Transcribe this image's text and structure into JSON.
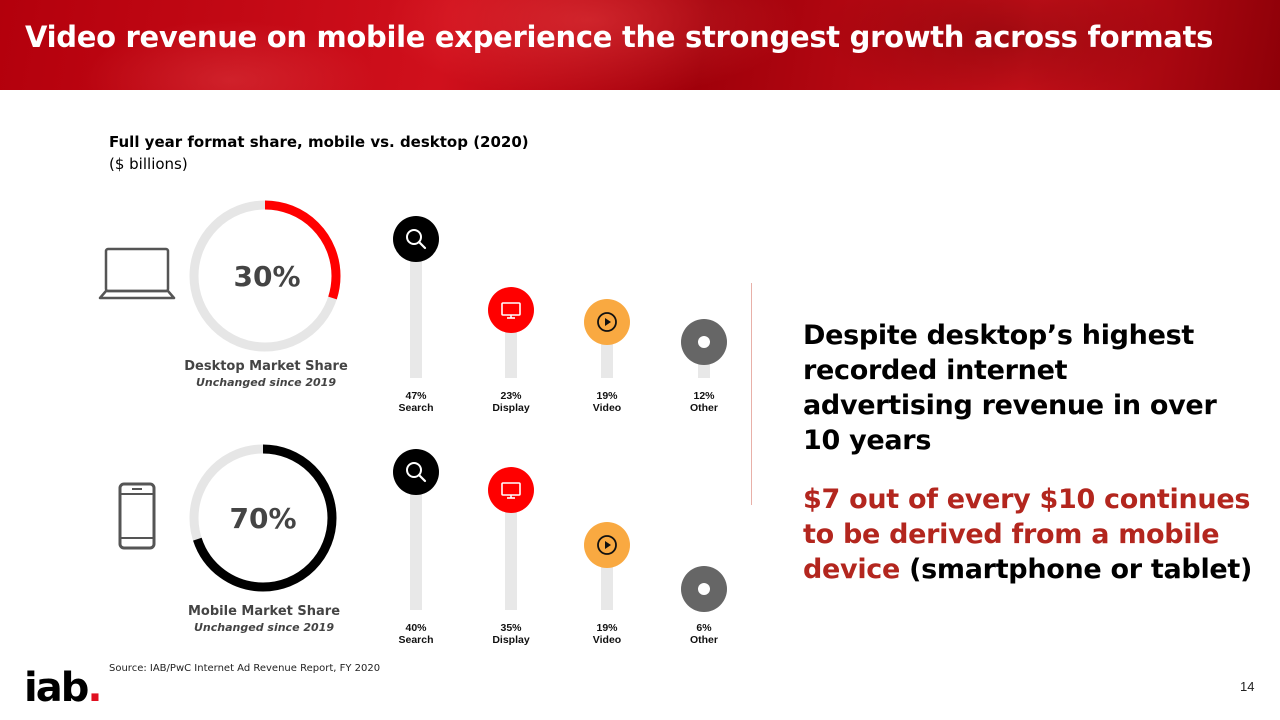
{
  "header": {
    "title": "Video revenue on mobile experience the strongest growth across formats"
  },
  "chart_heading": "Full year format share, mobile vs. desktop (2020)",
  "chart_subheading": "($ billions)",
  "chart_data": [
    {
      "type": "pie",
      "categories": [
        "Desktop Market Share",
        "Remainder"
      ],
      "values": [
        30,
        70
      ],
      "center_label": "30%",
      "label": "Desktop Market Share",
      "note": "Unchanged since 2019",
      "colors": {
        "fill": "#ff0000",
        "track": "#e6e6e6"
      }
    },
    {
      "type": "pie",
      "categories": [
        "Mobile Market Share",
        "Remainder"
      ],
      "values": [
        70,
        30
      ],
      "center_label": "70%",
      "label": "Mobile Market Share",
      "note": "Unchanged since 2019",
      "colors": {
        "fill": "#000000",
        "track": "#e6e6e6"
      }
    },
    {
      "type": "bar",
      "series_label": "Desktop",
      "categories": [
        "Search",
        "Display",
        "Video",
        "Other"
      ],
      "values": [
        47,
        23,
        19,
        12
      ],
      "value_labels": [
        "47%",
        "23%",
        "19%",
        "12%"
      ],
      "ylim": [
        0,
        50
      ],
      "icons": [
        "search-icon",
        "display-icon",
        "video-icon",
        "other-icon"
      ],
      "colors": [
        "#000000",
        "#ff0000",
        "#f9a941",
        "#666666"
      ]
    },
    {
      "type": "bar",
      "series_label": "Mobile",
      "categories": [
        "Search",
        "Display",
        "Video",
        "Other"
      ],
      "values": [
        40,
        35,
        19,
        6
      ],
      "value_labels": [
        "40%",
        "35%",
        "19%",
        "6%"
      ],
      "ylim": [
        0,
        50
      ],
      "icons": [
        "search-icon",
        "display-icon",
        "video-icon",
        "other-icon"
      ],
      "colors": [
        "#000000",
        "#ff0000",
        "#f9a941",
        "#666666"
      ]
    }
  ],
  "callout": {
    "main": "Despite desktop’s highest recorded internet advertising revenue in over 10 years",
    "sub_red": "$7 out of every $10 continues to be derived from a mobile device",
    "sub_black": " (smartphone or tablet)"
  },
  "footer": {
    "source": "Source: IAB/PwC Internet Ad Revenue Report, FY 2020",
    "logo_text": "iab",
    "logo_dot": ".",
    "page_number": "14"
  }
}
